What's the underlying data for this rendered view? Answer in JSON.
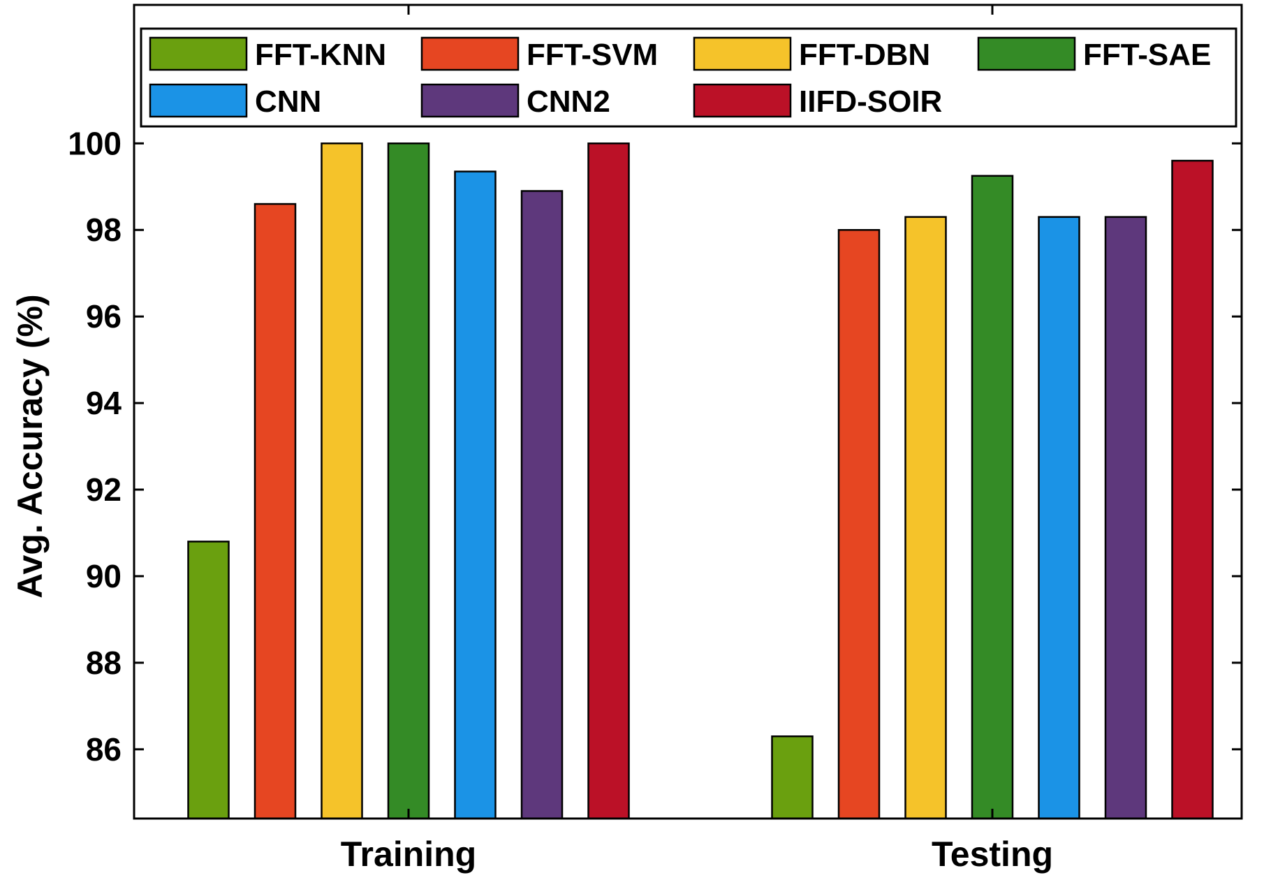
{
  "chart_data": {
    "type": "bar",
    "categories": [
      "Training",
      "Testing"
    ],
    "ylabel": "Avg. Accuracy (%)",
    "xlabel": "",
    "ylim": [
      84.4,
      103.2
    ],
    "yticks": [
      86,
      88,
      90,
      92,
      94,
      96,
      98,
      100
    ],
    "grid": false,
    "legend_position": "top",
    "series": [
      {
        "name": "FFT-KNN",
        "color": "#6aa00f",
        "values": [
          90.8,
          86.3
        ]
      },
      {
        "name": "FFT-SVM",
        "color": "#e64622",
        "values": [
          98.6,
          98.0
        ]
      },
      {
        "name": "FFT-DBN",
        "color": "#f5c32a",
        "values": [
          100.0,
          98.3
        ]
      },
      {
        "name": "FFT-SAE",
        "color": "#348b26",
        "values": [
          100.0,
          99.25
        ]
      },
      {
        "name": "CNN",
        "color": "#1b93e6",
        "values": [
          99.35,
          98.3
        ]
      },
      {
        "name": "CNN2",
        "color": "#5e387c",
        "values": [
          98.9,
          98.3
        ]
      },
      {
        "name": "IIFD-SOIR",
        "color": "#bb1127",
        "values": [
          100.0,
          99.6
        ]
      }
    ]
  }
}
